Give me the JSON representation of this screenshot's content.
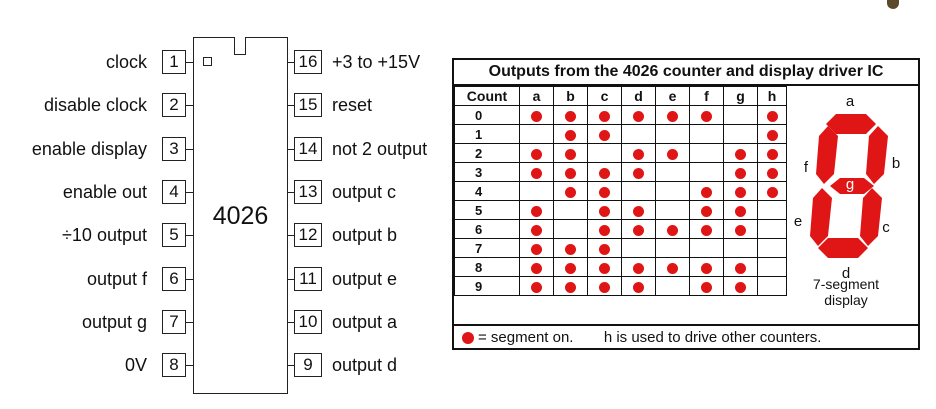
{
  "chip": {
    "name": "4026",
    "left_pins": [
      {
        "num": "1",
        "label": "clock"
      },
      {
        "num": "2",
        "label": "disable clock"
      },
      {
        "num": "3",
        "label": "enable display"
      },
      {
        "num": "4",
        "label": "enable out"
      },
      {
        "num": "5",
        "label": "÷10 output"
      },
      {
        "num": "6",
        "label": "output f"
      },
      {
        "num": "7",
        "label": "output g"
      },
      {
        "num": "8",
        "label": "0V"
      }
    ],
    "right_pins": [
      {
        "num": "16",
        "label": "+3 to +15V"
      },
      {
        "num": "15",
        "label": "reset"
      },
      {
        "num": "14",
        "label": "not 2 output"
      },
      {
        "num": "13",
        "label": "output c"
      },
      {
        "num": "12",
        "label": "output b"
      },
      {
        "num": "11",
        "label": "output e"
      },
      {
        "num": "10",
        "label": "output a"
      },
      {
        "num": "9",
        "label": "output d"
      }
    ]
  },
  "table": {
    "title": "Outputs from the 4026 counter and display driver IC",
    "headers": [
      "Count",
      "a",
      "b",
      "c",
      "d",
      "e",
      "f",
      "g",
      "h"
    ],
    "rows": [
      {
        "count": "0",
        "on": [
          1,
          1,
          1,
          1,
          1,
          1,
          0,
          1
        ]
      },
      {
        "count": "1",
        "on": [
          0,
          1,
          1,
          0,
          0,
          0,
          0,
          1
        ]
      },
      {
        "count": "2",
        "on": [
          1,
          1,
          0,
          1,
          1,
          0,
          1,
          1
        ]
      },
      {
        "count": "3",
        "on": [
          1,
          1,
          1,
          1,
          0,
          0,
          1,
          1
        ]
      },
      {
        "count": "4",
        "on": [
          0,
          1,
          1,
          0,
          0,
          1,
          1,
          1
        ]
      },
      {
        "count": "5",
        "on": [
          1,
          0,
          1,
          1,
          0,
          1,
          1,
          0
        ]
      },
      {
        "count": "6",
        "on": [
          1,
          0,
          1,
          1,
          1,
          1,
          1,
          0
        ]
      },
      {
        "count": "7",
        "on": [
          1,
          1,
          1,
          0,
          0,
          0,
          0,
          0
        ]
      },
      {
        "count": "8",
        "on": [
          1,
          1,
          1,
          1,
          1,
          1,
          1,
          0
        ]
      },
      {
        "count": "9",
        "on": [
          1,
          1,
          1,
          1,
          0,
          1,
          1,
          0
        ]
      }
    ],
    "footer_key": "= segment on.",
    "footer_note": "h is used to drive other counters.",
    "dot_color": "#e01515"
  },
  "display": {
    "segment_labels": [
      "a",
      "b",
      "c",
      "d",
      "e",
      "f",
      "g"
    ],
    "caption_line1": "7-segment",
    "caption_line2": "display",
    "segment_color": "#e01515"
  }
}
